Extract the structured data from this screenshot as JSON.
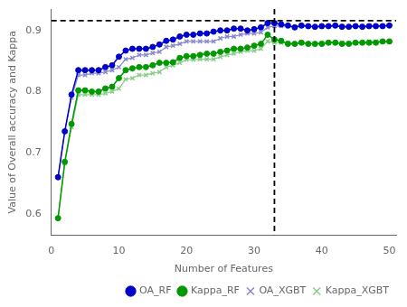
{
  "chart_data": {
    "type": "line",
    "x": [
      1,
      2,
      3,
      4,
      5,
      6,
      7,
      8,
      9,
      10,
      11,
      12,
      13,
      14,
      15,
      16,
      17,
      18,
      19,
      20,
      21,
      22,
      23,
      24,
      25,
      26,
      27,
      28,
      29,
      30,
      31,
      32,
      33,
      34,
      35,
      36,
      37,
      38,
      39,
      40,
      41,
      42,
      43,
      44,
      45,
      46,
      47,
      48,
      49,
      50
    ],
    "series": [
      {
        "name": "OA_RF",
        "color": "#0000cc",
        "marker": "circle",
        "values": [
          0.66,
          0.735,
          0.795,
          0.835,
          0.835,
          0.835,
          0.835,
          0.84,
          0.843,
          0.857,
          0.867,
          0.87,
          0.87,
          0.87,
          0.873,
          0.877,
          0.883,
          0.885,
          0.89,
          0.893,
          0.893,
          0.895,
          0.895,
          0.898,
          0.9,
          0.9,
          0.903,
          0.903,
          0.9,
          0.902,
          0.905,
          0.912,
          0.912,
          0.91,
          0.908,
          0.905,
          0.908,
          0.907,
          0.906,
          0.907,
          0.907,
          0.908,
          0.906,
          0.906,
          0.907,
          0.906,
          0.907,
          0.907,
          0.907,
          0.908
        ]
      },
      {
        "name": "Kappa_RF",
        "color": "#009900",
        "marker": "circle",
        "values": [
          0.593,
          0.685,
          0.747,
          0.802,
          0.802,
          0.8,
          0.8,
          0.805,
          0.808,
          0.822,
          0.835,
          0.838,
          0.84,
          0.84,
          0.843,
          0.847,
          0.847,
          0.848,
          0.855,
          0.858,
          0.858,
          0.86,
          0.862,
          0.862,
          0.865,
          0.867,
          0.87,
          0.87,
          0.872,
          0.875,
          0.878,
          0.893,
          0.885,
          0.883,
          0.878,
          0.878,
          0.88,
          0.878,
          0.878,
          0.878,
          0.88,
          0.88,
          0.878,
          0.878,
          0.88,
          0.88,
          0.88,
          0.88,
          0.882,
          0.882
        ]
      },
      {
        "name": "OA_XGBT",
        "color": "#8888cc",
        "marker": "x",
        "values": [
          0.66,
          0.735,
          0.79,
          0.827,
          0.827,
          0.83,
          0.83,
          0.832,
          0.835,
          0.84,
          0.853,
          0.855,
          0.86,
          0.86,
          0.863,
          0.865,
          0.873,
          0.875,
          0.878,
          0.882,
          0.882,
          0.882,
          0.882,
          0.882,
          0.887,
          0.89,
          0.89,
          0.893,
          0.895,
          0.895,
          0.897,
          0.905,
          0.907,
          0.907,
          0.907,
          0.905,
          0.907,
          0.906,
          0.906,
          0.906,
          0.907,
          0.907,
          0.907,
          0.907,
          0.907,
          0.907,
          0.908,
          0.908,
          0.908,
          0.908
        ]
      },
      {
        "name": "Kappa_XGBT",
        "color": "#88cc88",
        "marker": "x",
        "values": [
          0.593,
          0.683,
          0.742,
          0.795,
          0.795,
          0.795,
          0.795,
          0.797,
          0.8,
          0.805,
          0.82,
          0.822,
          0.827,
          0.827,
          0.83,
          0.832,
          0.84,
          0.843,
          0.847,
          0.852,
          0.852,
          0.853,
          0.853,
          0.853,
          0.857,
          0.86,
          0.862,
          0.865,
          0.867,
          0.867,
          0.87,
          0.882,
          0.88,
          0.88,
          0.88,
          0.878,
          0.88,
          0.878,
          0.878,
          0.88,
          0.88,
          0.88,
          0.88,
          0.88,
          0.88,
          0.88,
          0.882,
          0.882,
          0.882,
          0.882
        ]
      }
    ],
    "reference_lines": [
      {
        "axis": "y",
        "value": 0.916,
        "color": "#000000",
        "line_style": "dashed"
      },
      {
        "axis": "x",
        "value": 33,
        "color": "#000000",
        "line_style": "dashed"
      }
    ],
    "xlabel": "Number of Features",
    "ylabel": "Value of Overall accuracy and Kappa",
    "xlim": [
      0,
      51
    ],
    "ylim": [
      0.565,
      0.935
    ],
    "xticks": [
      0,
      10,
      20,
      30,
      40,
      50
    ],
    "yticks": [
      0.6,
      0.7,
      0.8,
      0.9
    ],
    "grid": false,
    "legend": "lower right"
  }
}
